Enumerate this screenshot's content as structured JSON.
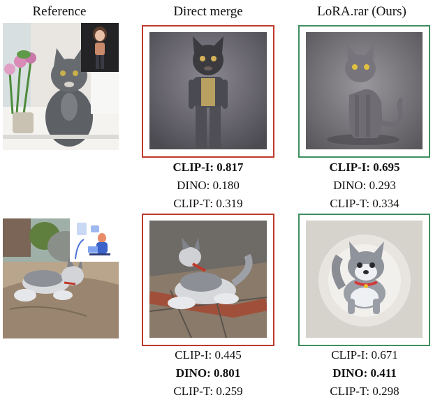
{
  "headers": {
    "reference": "Reference",
    "direct": "Direct merge",
    "ours": "LoRA.rar (Ours)"
  },
  "colors": {
    "direct_frame": "#c0392b",
    "ours_frame": "#3f8f5f"
  },
  "rows": [
    {
      "direct_metrics": [
        {
          "label": "CLIP-I:",
          "value": "0.817",
          "bold": true
        },
        {
          "label": "DINO:",
          "value": "0.180",
          "bold": false
        },
        {
          "label": "CLIP-T:",
          "value": "0.319",
          "bold": false
        }
      ],
      "ours_metrics": [
        {
          "label": "CLIP-I:",
          "value": "0.695",
          "bold": true
        },
        {
          "label": "DINO:",
          "value": "0.293",
          "bold": false
        },
        {
          "label": "CLIP-T:",
          "value": "0.334",
          "bold": false
        }
      ]
    },
    {
      "direct_metrics": [
        {
          "label": "CLIP-I:",
          "value": "0.445",
          "bold": false
        },
        {
          "label": "DINO:",
          "value": "0.801",
          "bold": true
        },
        {
          "label": "CLIP-T:",
          "value": "0.259",
          "bold": false
        }
      ],
      "ours_metrics": [
        {
          "label": "CLIP-I:",
          "value": "0.671",
          "bold": false
        },
        {
          "label": "DINO:",
          "value": "0.411",
          "bold": true
        },
        {
          "label": "CLIP-T:",
          "value": "0.298",
          "bold": false
        }
      ]
    }
  ]
}
